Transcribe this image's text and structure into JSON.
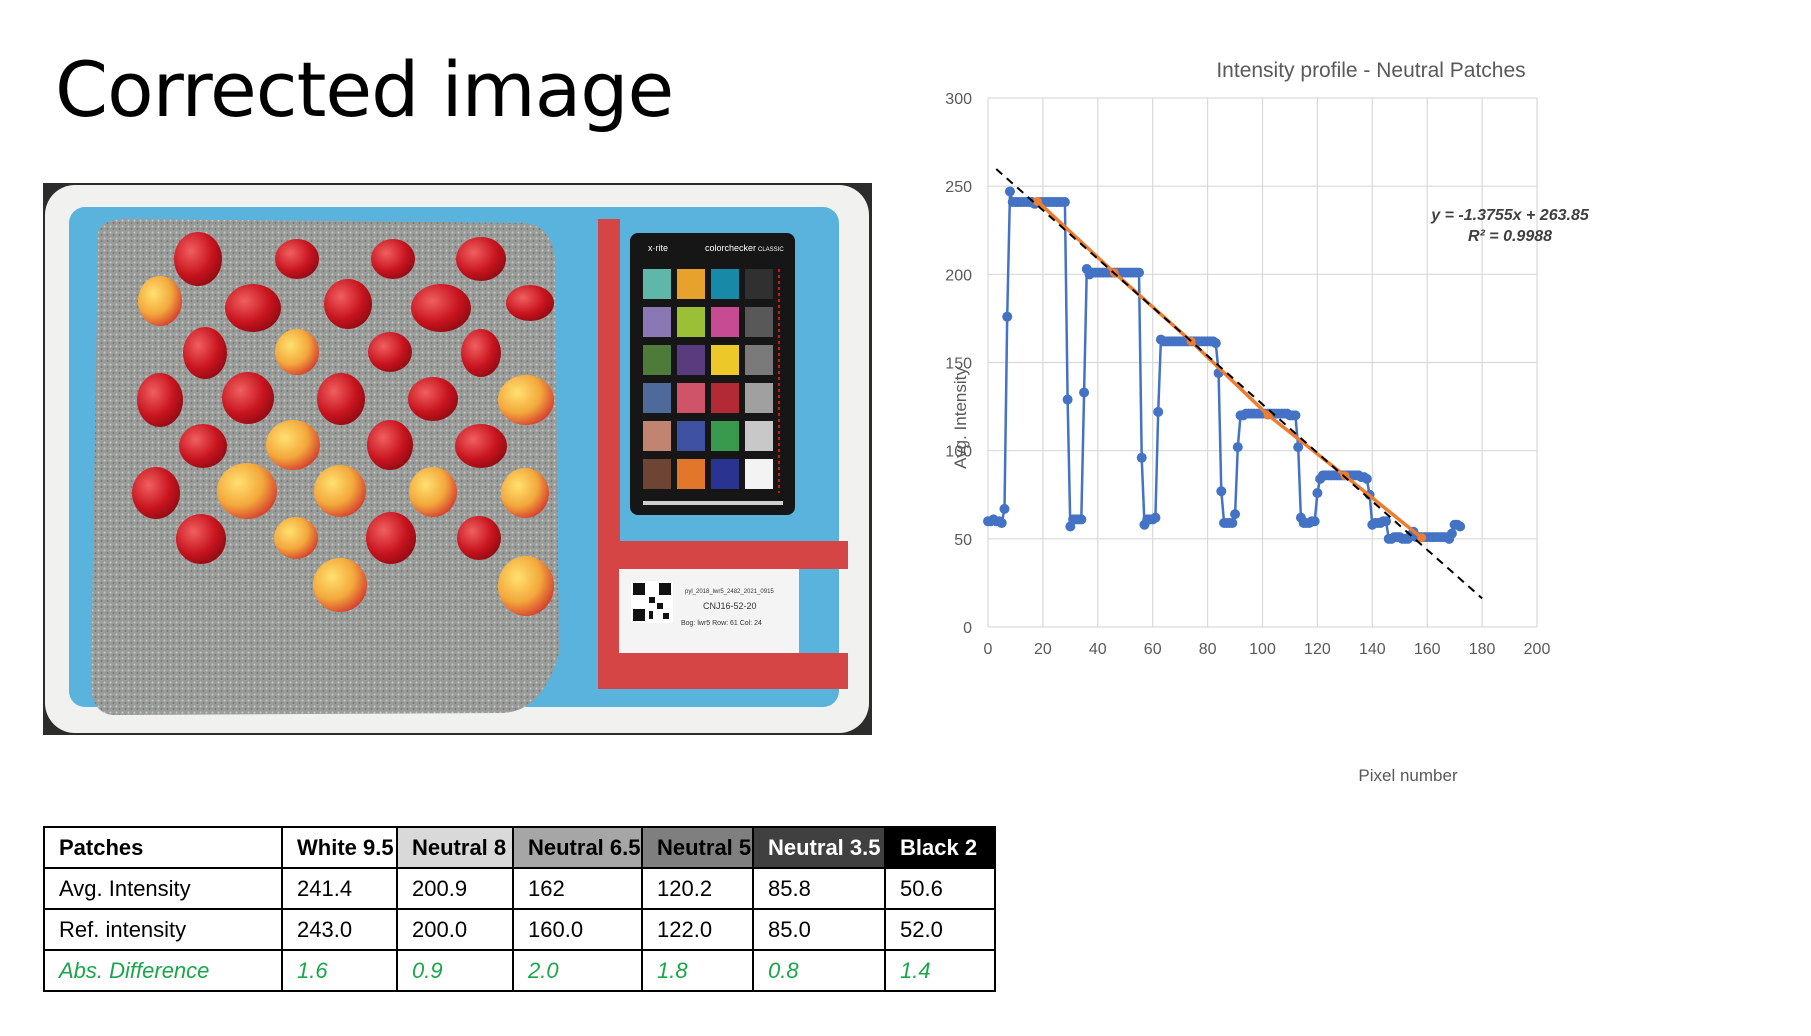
{
  "slide": {
    "title": "Corrected image"
  },
  "photo": {
    "checker_brand": "x·rite",
    "checker_title": "colorchecker",
    "checker_badge": "CLASSIC",
    "label_line1": "pyl_2018_lwr5_2482_2021_0915",
    "label_line2": "CNJ16-52-20",
    "label_line3": "Bog: lwr5  Row: 61  Col: 24"
  },
  "table": {
    "columns": [
      {
        "label": "Patches",
        "bg": "#ffffff",
        "fg": "#000000"
      },
      {
        "label": "White 9.5",
        "bg": "#ffffff",
        "fg": "#000000"
      },
      {
        "label": "Neutral 8",
        "bg": "#d9d9d9",
        "fg": "#000000"
      },
      {
        "label": "Neutral 6.5",
        "bg": "#a6a6a6",
        "fg": "#000000"
      },
      {
        "label": "Neutral 5",
        "bg": "#7f7f7f",
        "fg": "#000000"
      },
      {
        "label": "Neutral 3.5",
        "bg": "#404040",
        "fg": "#ffffff"
      },
      {
        "label": "Black 2",
        "bg": "#000000",
        "fg": "#ffffff"
      }
    ],
    "rows": [
      {
        "label": "Avg. Intensity",
        "values": [
          "241.4",
          "200.9",
          "162",
          "120.2",
          "85.8",
          "50.6"
        ]
      },
      {
        "label": "Ref. intensity",
        "values": [
          "243.0",
          "200.0",
          "160.0",
          "122.0",
          "85.0",
          "52.0"
        ]
      },
      {
        "label": "Abs. Difference",
        "values": [
          "1.6",
          "0.9",
          "2.0",
          "1.8",
          "0.8",
          "1.4"
        ]
      }
    ],
    "diff_color": "#1aa64a"
  },
  "chart_data": {
    "type": "line",
    "title": "Intensity profile - Neutral Patches",
    "xlabel": "Pixel number",
    "ylabel": "Avg. Intensity",
    "xlim": [
      0,
      200
    ],
    "ylim": [
      0,
      300
    ],
    "xticks": [
      0,
      20,
      40,
      60,
      80,
      100,
      120,
      140,
      160,
      180,
      200
    ],
    "yticks": [
      0,
      50,
      100,
      150,
      200,
      250,
      300
    ],
    "grid": true,
    "legend": "none",
    "equation": "y = -1.3755x + 263.85",
    "r_squared": "R² = 0.9988",
    "colors": {
      "profile": "#4472c4",
      "patch_line": "#ed7d31",
      "trend": "#000000",
      "grid": "#d9d9d9"
    },
    "profile": {
      "x": [
        0,
        1,
        2,
        3,
        4,
        5,
        6,
        7,
        8,
        9,
        10,
        11,
        12,
        13,
        14,
        15,
        16,
        17,
        18,
        19,
        20,
        21,
        22,
        23,
        24,
        25,
        26,
        27,
        28,
        29,
        30,
        31,
        32,
        33,
        34,
        35,
        36,
        37,
        38,
        39,
        40,
        41,
        42,
        43,
        44,
        45,
        46,
        47,
        48,
        49,
        50,
        51,
        52,
        53,
        54,
        55,
        56,
        57,
        58,
        59,
        60,
        61,
        62,
        63,
        64,
        65,
        66,
        67,
        68,
        69,
        70,
        71,
        72,
        73,
        74,
        75,
        76,
        77,
        78,
        79,
        80,
        81,
        82,
        83,
        84,
        85,
        86,
        87,
        88,
        89,
        90,
        91,
        92,
        93,
        94,
        95,
        96,
        97,
        98,
        99,
        100,
        101,
        102,
        103,
        104,
        105,
        106,
        107,
        108,
        109,
        110,
        111,
        112,
        113,
        114,
        115,
        116,
        117,
        118,
        119,
        120,
        121,
        122,
        123,
        124,
        125,
        126,
        127,
        128,
        129,
        130,
        131,
        132,
        133,
        134,
        135,
        136,
        137,
        138,
        139,
        140,
        141,
        142,
        143,
        144,
        145,
        146,
        147,
        148,
        149,
        150,
        151,
        152,
        153,
        154,
        155,
        156,
        157,
        158,
        159,
        160,
        161,
        162,
        163,
        164,
        165,
        166,
        167,
        168,
        169,
        170,
        171,
        172
      ],
      "y": [
        60,
        60,
        61,
        60,
        60,
        59,
        67,
        176,
        247,
        241,
        241,
        241,
        241,
        241,
        241,
        241,
        241,
        240,
        241,
        241,
        241,
        241,
        241,
        241,
        241,
        241,
        241,
        241,
        241,
        129,
        57,
        61,
        61,
        61,
        61,
        133,
        203,
        200,
        201,
        201,
        201,
        201,
        201,
        201,
        201,
        201,
        201,
        201,
        201,
        201,
        201,
        201,
        201,
        201,
        201,
        201,
        96,
        58,
        61,
        61,
        61,
        62,
        122,
        163,
        162,
        162,
        162,
        162,
        162,
        162,
        162,
        162,
        162,
        162,
        162,
        162,
        162,
        162,
        162,
        162,
        162,
        162,
        162,
        161,
        144,
        77,
        59,
        59,
        59,
        59,
        64,
        102,
        120,
        120,
        121,
        121,
        121,
        121,
        121,
        121,
        121,
        121,
        121,
        121,
        121,
        121,
        121,
        121,
        121,
        121,
        120,
        120,
        120,
        102,
        62,
        59,
        59,
        59,
        60,
        60,
        76,
        84,
        86,
        86,
        86,
        86,
        86,
        86,
        86,
        86,
        86,
        86,
        86,
        86,
        86,
        86,
        85,
        85,
        84,
        75,
        58,
        59,
        59,
        59,
        60,
        60,
        50,
        50,
        51,
        51,
        51,
        50,
        50,
        50,
        52,
        54,
        51,
        51,
        51,
        51,
        51,
        51,
        51,
        51,
        51,
        51,
        51,
        51,
        50,
        53,
        58,
        58,
        57
      ]
    },
    "patch_means": {
      "x": [
        18,
        46,
        74,
        102,
        130,
        158
      ],
      "y": [
        241.4,
        200.9,
        162,
        120.2,
        85.8,
        50.6
      ]
    },
    "trendline": {
      "slope": -1.3755,
      "intercept": 263.85,
      "x_range": [
        3,
        180
      ]
    }
  }
}
